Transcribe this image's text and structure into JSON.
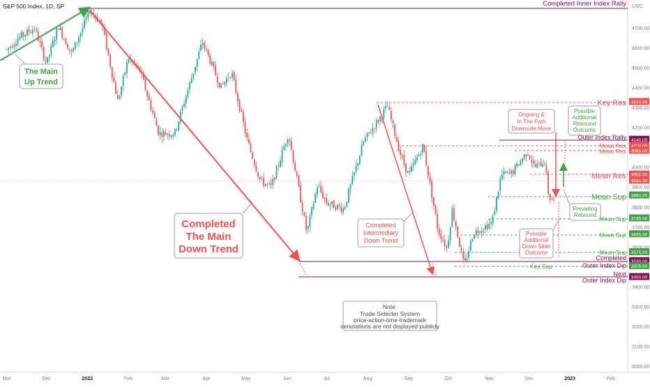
{
  "header": {
    "symbol_title": "S&P 500 Index, 1D, SP",
    "currency": "USD"
  },
  "chart_data": {
    "type": "candlestick",
    "title": "S&P 500 Index, 1D, SP",
    "y_axis": {
      "ticks": [
        3000,
        3100,
        3200,
        3300,
        3400,
        3500,
        3600,
        3700,
        3800,
        3900,
        4000,
        4100,
        4200,
        4300,
        4400,
        4500,
        4600,
        4700
      ],
      "tick_labels": [
        "3000.00",
        "3100.00",
        "3200.00",
        "3300.00",
        "3400.00",
        "3500.00",
        "3600.00",
        "3700.00",
        "3800.00",
        "3900.00",
        "4000.00",
        "4100.00",
        "4200.00",
        "4300.00",
        "4400.00",
        "4500.00",
        "4600.00",
        "4700.00"
      ],
      "ylim": [
        2950,
        4830
      ]
    },
    "x_axis": {
      "tick_labels": [
        "Nov",
        "Dec",
        "2022",
        "Feb",
        "Mar",
        "Apr",
        "May",
        "Jun",
        "Jul",
        "Aug",
        "Sep",
        "Oct",
        "Nov",
        "Dec",
        "2023",
        "Feb"
      ],
      "bold_labels": [
        "2022",
        "2023"
      ]
    },
    "price_path": [
      [
        "2021-11-01",
        4590
      ],
      [
        "2021-11-10",
        4650
      ],
      [
        "2021-11-22",
        4700
      ],
      [
        "2021-12-01",
        4520
      ],
      [
        "2021-12-10",
        4710
      ],
      [
        "2021-12-20",
        4570
      ],
      [
        "2022-01-03",
        4790
      ],
      [
        "2022-01-12",
        4720
      ],
      [
        "2022-01-24",
        4330
      ],
      [
        "2022-02-01",
        4550
      ],
      [
        "2022-02-10",
        4480
      ],
      [
        "2022-02-24",
        4170
      ],
      [
        "2022-03-08",
        4170
      ],
      [
        "2022-03-29",
        4630
      ],
      [
        "2022-04-12",
        4400
      ],
      [
        "2022-04-20",
        4480
      ],
      [
        "2022-05-02",
        4130
      ],
      [
        "2022-05-12",
        3930
      ],
      [
        "2022-05-20",
        3900
      ],
      [
        "2022-06-02",
        4170
      ],
      [
        "2022-06-16",
        3670
      ],
      [
        "2022-06-24",
        3910
      ],
      [
        "2022-07-01",
        3820
      ],
      [
        "2022-07-14",
        3790
      ],
      [
        "2022-07-29",
        4130
      ],
      [
        "2022-08-16",
        4305
      ],
      [
        "2022-08-26",
        4060
      ],
      [
        "2022-09-01",
        3960
      ],
      [
        "2022-09-12",
        4110
      ],
      [
        "2022-09-23",
        3690
      ],
      [
        "2022-09-30",
        3590
      ],
      [
        "2022-10-04",
        3790
      ],
      [
        "2022-10-13",
        3500
      ],
      [
        "2022-10-20",
        3670
      ],
      [
        "2022-11-03",
        3720
      ],
      [
        "2022-11-10",
        3960
      ],
      [
        "2022-11-18",
        3970
      ],
      [
        "2022-11-30",
        4080
      ],
      [
        "2022-12-05",
        4000
      ],
      [
        "2022-12-13",
        4030
      ],
      [
        "2022-12-16",
        3850
      ],
      [
        "2022-12-20",
        3830
      ]
    ],
    "horizontal_levels": [
      {
        "label": "Completed Inner Index Rally",
        "value": 4800
      },
      {
        "label": "Key Res",
        "value": 4330
      },
      {
        "label": "Outer Index Rally",
        "value": 4140
      },
      {
        "label": "Mean Res",
        "value": 4110
      },
      {
        "label": "Mean Res",
        "value": 4085
      },
      {
        "label": "Mean Res",
        "value": 3965
      },
      {
        "label": "Mean Sup",
        "value": 3860
      },
      {
        "label": "Mean Sup",
        "value": 3745
      },
      {
        "label": "Mean Sup",
        "value": 3665
      },
      {
        "label": "Mean Sup",
        "value": 3575
      },
      {
        "label": "Completed Outer Index Dip",
        "value": 3530
      },
      {
        "label": "Key Sup",
        "value": 3505
      },
      {
        "label": "Next Outer Index Dip",
        "value": 3450
      }
    ],
    "price_badges": [
      {
        "value": "4330.00",
        "color": "#ef5350"
      },
      {
        "value": "4140.00",
        "color": "#880e4f"
      },
      {
        "value": "4110.00",
        "color": "#ef5350"
      },
      {
        "value": "4085.00",
        "color": "#ef5350"
      },
      {
        "value": "3965.00",
        "color": "#ef5350"
      },
      {
        "value": "3934.39",
        "color": "#ef5350"
      },
      {
        "value": "3860.00",
        "color": "#43a047"
      },
      {
        "value": "3745.00",
        "color": "#43a047"
      },
      {
        "value": "3665.00",
        "color": "#43a047"
      },
      {
        "value": "3575.00",
        "color": "#43a047"
      },
      {
        "value": "3530.00",
        "color": "#880e4f"
      },
      {
        "value": "3505.00",
        "color": "#43a047"
      },
      {
        "value": "3450.00",
        "color": "#880e4f"
      }
    ],
    "colors": {
      "up": "#26a69a",
      "down": "#ef5350",
      "support": "#43a047",
      "resistance": "#ef5350",
      "outer": "#880e4f"
    }
  },
  "annotations": {
    "main_up_trend": [
      "The Main",
      "Up Trend"
    ],
    "completed_main_down": [
      "Completed",
      "The Main",
      "Down Trend"
    ],
    "completed_intermediary": [
      "Completed",
      "Intermediary",
      "Down Trend"
    ],
    "ongoing": [
      "Ongoing &",
      "In The Path",
      "Downside Move"
    ],
    "possible_rebound": [
      "Possible",
      "Additional",
      "Rebound",
      "Outcome"
    ],
    "prevailing_rebound": [
      "Prevailing",
      "Rebound"
    ],
    "possible_down_slide": [
      "Possible",
      "Additional",
      "Down Slide",
      "Outcome"
    ],
    "note": [
      "Note:",
      "Trade Selecter System",
      "price-action-time-trademark",
      "denotations are not displayed publicly"
    ]
  },
  "level_labels": {
    "completed_inner_rally": "Completed Inner Index Rally",
    "key_res": "Key Res",
    "outer_rally": "Outer Index Rally",
    "mean_res_1": "Mean Res",
    "mean_res_2": "Mean Res",
    "mean_res_3": "Mean Res",
    "mean_sup_1": "Mean Sup",
    "mean_sup_2": "Mean Sup",
    "mean_sup_3": "Mean Sup",
    "mean_sup_4": "Mean Sup",
    "completed": "Completed",
    "outer_dip": "Outer Index Dip",
    "key_sup": "Key Sup",
    "next": "Next",
    "next_outer_dip": "Outer Index Dip"
  }
}
